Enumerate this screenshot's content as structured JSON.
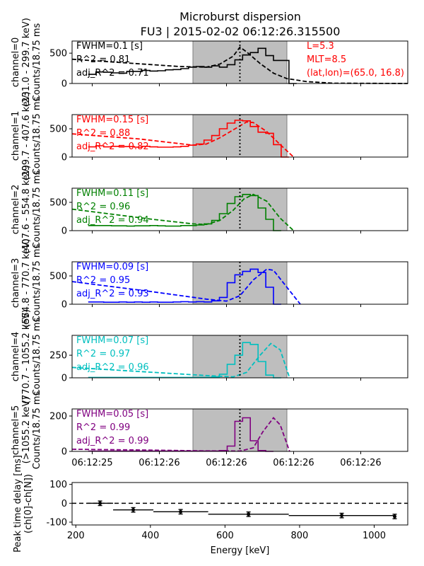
{
  "title_line1": "Microburst dispersion",
  "title_line2": "FU3 | 2015-02-02 06:12:26.315500",
  "top_annotation": [
    "L=5.3",
    "MLT=8.5",
    "(lat,lon)=(65.0, 16.8)"
  ],
  "colors": {
    "accent_annotation": "#ff0000",
    "shaded_region": "#bebebe",
    "channels": [
      "#000000",
      "#ff0000",
      "#008000",
      "#0000ff",
      "#00bfbf",
      "#800080"
    ]
  },
  "chart_data": [
    {
      "type": "line",
      "title": "channel=0",
      "ylabel": [
        "channel=0",
        "(231.0 - 299.7 keV)",
        "Counts/18.75 ms"
      ],
      "ylim": [
        0,
        700
      ],
      "yticks": [
        0,
        500
      ],
      "x_range_s": [
        0.0,
        2.5
      ],
      "xticks_s": [
        0.15,
        0.65,
        1.15,
        1.65,
        2.15
      ],
      "xtick_labels": [
        "06:12:25",
        "06:12:26",
        "06:12:26",
        "06:12:26",
        "06:12:26"
      ],
      "shaded_region_s": [
        0.9,
        1.6
      ],
      "vertical_line_s": 1.25,
      "fit_text": [
        "FWHM=0.1 [s]",
        "R^2 = 0.81",
        "adj_R^2 = 0.71"
      ],
      "color": "#000000",
      "counts_step": {
        "t_start": 0.12,
        "dt": 0.0575,
        "values": [
          150,
          190,
          185,
          175,
          170,
          200,
          200,
          215,
          205,
          210,
          225,
          230,
          245,
          270,
          280,
          270,
          290,
          270,
          310,
          390,
          470,
          510,
          580,
          460,
          380,
          380,
          0
        ]
      },
      "fit_line": {
        "x": [
          0.0,
          0.4,
          0.8,
          1.0,
          1.1,
          1.2,
          1.25,
          1.3,
          1.4,
          1.5,
          1.6,
          1.75,
          1.95,
          2.5
        ],
        "y": [
          400,
          340,
          280,
          270,
          320,
          450,
          600,
          520,
          330,
          170,
          80,
          30,
          5,
          0
        ]
      }
    },
    {
      "type": "line",
      "title": "channel=1",
      "ylabel": [
        "channel=1",
        "(299.7 - 407.6 keV)",
        "Counts/18.75 ms"
      ],
      "ylim": [
        0,
        750
      ],
      "yticks": [
        0,
        500
      ],
      "x_range_s": [
        0.0,
        2.5
      ],
      "shaded_region_s": [
        0.9,
        1.6
      ],
      "vertical_line_s": 1.25,
      "fit_text": [
        "FWHM=0.15 [s]",
        "R^2 = 0.88",
        "adj_R^2 = 0.82"
      ],
      "color": "#ff0000",
      "counts_step": {
        "t_start": 0.12,
        "dt": 0.0575,
        "values": [
          180,
          200,
          180,
          190,
          185,
          185,
          175,
          190,
          180,
          175,
          175,
          180,
          190,
          210,
          230,
          300,
          380,
          500,
          600,
          650,
          640,
          540,
          440,
          420,
          220,
          0
        ]
      },
      "fit_line": {
        "x": [
          0.0,
          0.5,
          0.9,
          1.0,
          1.1,
          1.2,
          1.3,
          1.35,
          1.45,
          1.55,
          1.65
        ],
        "y": [
          410,
          320,
          210,
          230,
          340,
          480,
          620,
          610,
          450,
          220,
          0
        ]
      }
    },
    {
      "type": "line",
      "title": "channel=2",
      "ylabel": [
        "channel=2",
        "(407.6 - 554.8 keV)",
        "Counts/18.75 ms"
      ],
      "ylim": [
        0,
        750
      ],
      "yticks": [
        0,
        500
      ],
      "x_range_s": [
        0.0,
        2.5
      ],
      "shaded_region_s": [
        0.9,
        1.6
      ],
      "vertical_line_s": 1.25,
      "fit_text": [
        "FWHM=0.11 [s]",
        "R^2 = 0.96",
        "adj_R^2 = 0.94"
      ],
      "color": "#008000",
      "counts_step": {
        "t_start": 0.12,
        "dt": 0.0575,
        "values": [
          90,
          90,
          90,
          85,
          85,
          80,
          85,
          85,
          90,
          85,
          80,
          80,
          90,
          90,
          100,
          120,
          180,
          300,
          480,
          600,
          640,
          620,
          400,
          200,
          0
        ]
      },
      "fit_line": {
        "x": [
          0.0,
          0.6,
          0.9,
          1.0,
          1.1,
          1.2,
          1.28,
          1.35,
          1.45,
          1.55,
          1.65
        ],
        "y": [
          380,
          200,
          120,
          110,
          180,
          360,
          560,
          640,
          520,
          220,
          0
        ]
      }
    },
    {
      "type": "line",
      "title": "channel=3",
      "ylabel": [
        "channel=3",
        "(554.8 - 770.7 keV)",
        "Counts/18.75 ms"
      ],
      "ylim": [
        0,
        750
      ],
      "yticks": [
        0,
        500
      ],
      "x_range_s": [
        0.0,
        2.5
      ],
      "shaded_region_s": [
        0.9,
        1.6
      ],
      "vertical_line_s": 1.25,
      "fit_text": [
        "FWHM=0.09 [s]",
        "R^2 = 0.95",
        "adj_R^2 = 0.93"
      ],
      "color": "#0000ff",
      "counts_step": {
        "t_start": 0.12,
        "dt": 0.0575,
        "values": [
          40,
          40,
          35,
          35,
          40,
          35,
          40,
          35,
          40,
          35,
          35,
          40,
          45,
          40,
          45,
          40,
          60,
          120,
          380,
          520,
          580,
          620,
          560,
          300,
          0
        ]
      },
      "fit_line": {
        "x": [
          0.0,
          0.6,
          1.0,
          1.15,
          1.25,
          1.35,
          1.45,
          1.5,
          1.6,
          1.7
        ],
        "y": [
          400,
          220,
          90,
          55,
          150,
          430,
          620,
          600,
          300,
          0
        ]
      }
    },
    {
      "type": "line",
      "title": "channel=4",
      "ylabel": [
        "channel=4",
        "(770.7 - 1055.2 keV)",
        "Counts/18.75 ms"
      ],
      "ylim": [
        0,
        470
      ],
      "yticks": [
        0,
        250
      ],
      "x_range_s": [
        0.0,
        2.5
      ],
      "shaded_region_s": [
        0.9,
        1.6
      ],
      "vertical_line_s": 1.25,
      "fit_text": [
        "FWHM=0.07 [s]",
        "R^2 = 0.97",
        "adj_R^2 = 0.96"
      ],
      "color": "#00bfbf",
      "counts_step": {
        "t_start": 0.12,
        "dt": 0.0575,
        "values": [
          5,
          5,
          5,
          5,
          5,
          5,
          5,
          5,
          5,
          5,
          5,
          5,
          5,
          5,
          5,
          5,
          10,
          40,
          150,
          250,
          390,
          370,
          180,
          30,
          0
        ]
      },
      "fit_line": {
        "x": [
          0.0,
          0.5,
          1.0,
          1.2,
          1.3,
          1.4,
          1.48,
          1.55,
          1.62
        ],
        "y": [
          115,
          70,
          25,
          10,
          60,
          250,
          380,
          310,
          0
        ]
      }
    },
    {
      "type": "line",
      "title": "channel=5",
      "ylabel": [
        "channel=5",
        "(>1055.2 keV)",
        "Counts/18.75 ms"
      ],
      "ylim": [
        0,
        240
      ],
      "yticks": [
        0,
        200
      ],
      "x_range_s": [
        0.0,
        2.5
      ],
      "xticks_s": [
        0.15,
        0.65,
        1.15,
        1.65,
        2.15
      ],
      "xtick_labels": [
        "06:12:25",
        "06:12:26",
        "06:12:26",
        "06:12:26",
        "06:12:26"
      ],
      "shaded_region_s": [
        0.9,
        1.6
      ],
      "vertical_line_s": 1.25,
      "fit_text": [
        "FWHM=0.05 [s]",
        "R^2 = 0.99",
        "adj_R^2 = 0.99"
      ],
      "color": "#800080",
      "counts_step": {
        "t_start": 0.12,
        "dt": 0.0575,
        "values": [
          2,
          2,
          2,
          2,
          2,
          2,
          2,
          2,
          2,
          2,
          2,
          2,
          2,
          2,
          2,
          2,
          2,
          5,
          30,
          170,
          190,
          60,
          5,
          0
        ]
      },
      "fit_line": {
        "x": [
          0.0,
          0.5,
          1.0,
          1.25,
          1.35,
          1.42,
          1.5,
          1.55,
          1.62
        ],
        "y": [
          12,
          8,
          3,
          2,
          20,
          110,
          190,
          150,
          0
        ]
      }
    },
    {
      "type": "scatter",
      "xlabel": "Energy [keV]",
      "ylabel": [
        "Peak time delay [ms]",
        "(ch[0]-ch[N])"
      ],
      "xlim": [
        190,
        1090
      ],
      "ylim": [
        -115,
        110
      ],
      "xticks": [
        200,
        400,
        600,
        800,
        1000
      ],
      "yticks": [
        -100,
        0,
        100
      ],
      "reference_line_y": 0,
      "color": "#000000",
      "points": [
        {
          "x": 265,
          "y": 0,
          "xerr": [
            231,
            300
          ],
          "yerr": 12
        },
        {
          "x": 354,
          "y": -35,
          "xerr": [
            300,
            408
          ],
          "yerr": 12
        },
        {
          "x": 481,
          "y": -45,
          "xerr": [
            408,
            555
          ],
          "yerr": 12
        },
        {
          "x": 663,
          "y": -58,
          "xerr": [
            555,
            771
          ],
          "yerr": 12
        },
        {
          "x": 913,
          "y": -65,
          "xerr": [
            771,
            1055
          ],
          "yerr": 12
        },
        {
          "x": 1055,
          "y": -70,
          "xerr": [
            1055,
            1055
          ],
          "yerr": 12
        }
      ]
    }
  ]
}
